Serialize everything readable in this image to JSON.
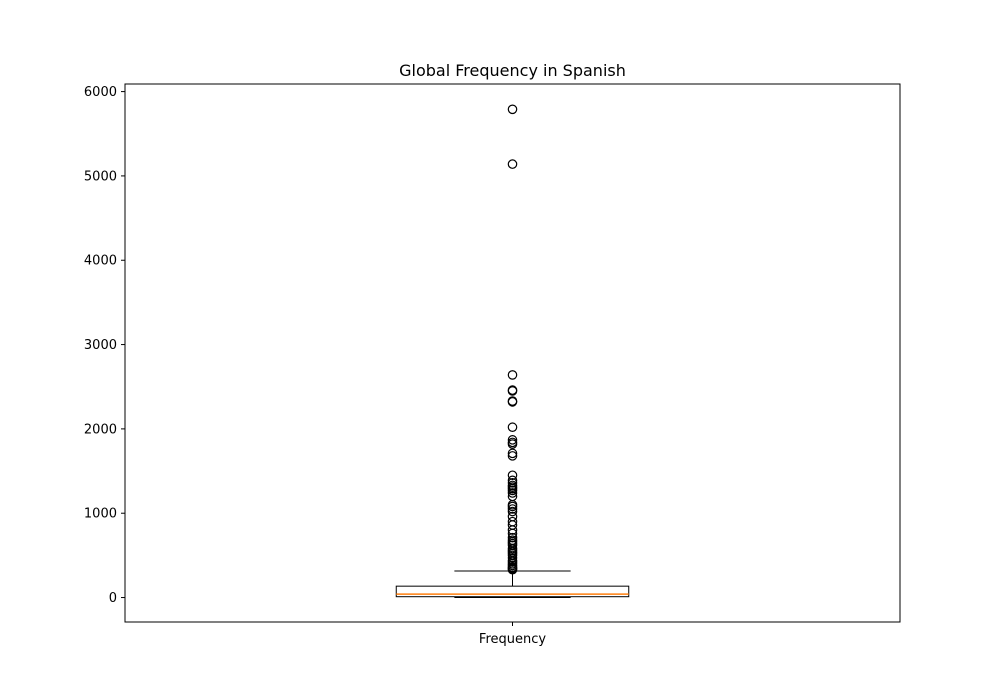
{
  "chart_data": {
    "type": "box",
    "title": "Global Frequency in Spanish",
    "xlabel": "",
    "ylabel": "",
    "categories": [
      "Frequency"
    ],
    "ylim": [
      -290,
      6090
    ],
    "yticks": [
      0,
      1000,
      2000,
      3000,
      4000,
      5000,
      6000
    ],
    "ytick_labels": [
      "0",
      "1000",
      "2000",
      "3000",
      "4000",
      "5000",
      "6000"
    ],
    "grid": false,
    "series": [
      {
        "whisker_low": 0,
        "q1": 10,
        "median": 40,
        "q3": 135,
        "whisker_high": 315,
        "outliers": [
          5790,
          5140,
          2640,
          2460,
          2450,
          2330,
          2320,
          2020,
          1870,
          1840,
          1820,
          1710,
          1680,
          1450,
          1390,
          1360,
          1330,
          1310,
          1290,
          1270,
          1240,
          1200,
          1100,
          1080,
          1050,
          1020,
          960,
          900,
          860,
          800,
          760,
          710,
          680,
          660,
          640,
          620,
          580,
          560,
          540,
          520,
          500,
          470,
          440,
          420,
          400,
          380,
          360,
          350,
          340,
          330
        ],
        "median_color": "#ff7f0e",
        "line_color": "#000000"
      }
    ]
  }
}
